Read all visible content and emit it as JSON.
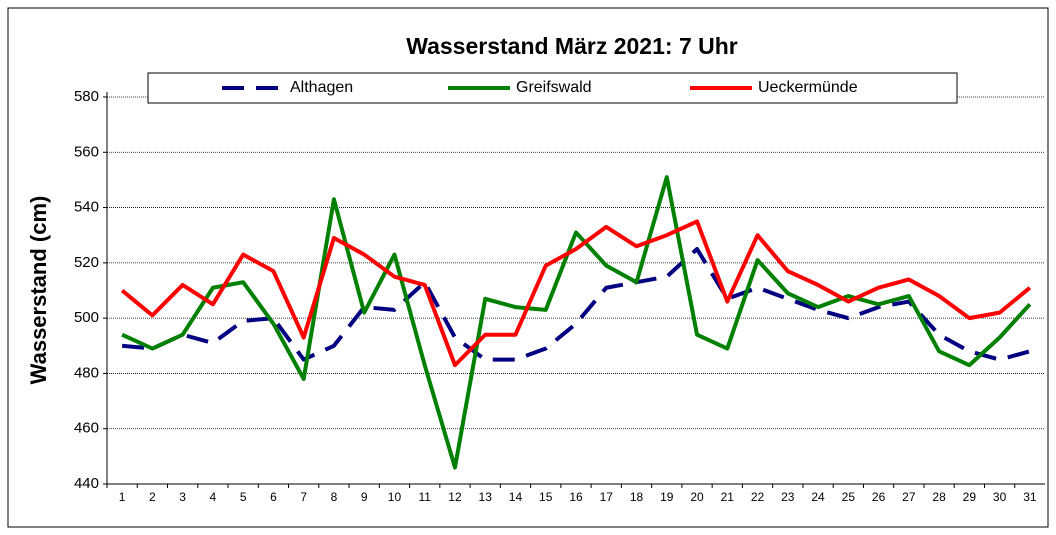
{
  "chart_data": {
    "type": "line",
    "title": "Wasserstand März 2021: 7 Uhr",
    "y_label": "Wasserstand (cm)",
    "categories": [
      "1",
      "2",
      "3",
      "4",
      "5",
      "6",
      "7",
      "8",
      "9",
      "10",
      "11",
      "12",
      "13",
      "14",
      "15",
      "16",
      "17",
      "18",
      "19",
      "20",
      "21",
      "22",
      "23",
      "24",
      "25",
      "26",
      "27",
      "28",
      "29",
      "30",
      "31"
    ],
    "series": [
      {
        "name": "Althagen",
        "color": "#000080",
        "dashed": true,
        "values": [
          490,
          489,
          494,
          491,
          499,
          500,
          485,
          490,
          504,
          503,
          513,
          493,
          485,
          485,
          489,
          498,
          511,
          513,
          515,
          525,
          507,
          511,
          507,
          503,
          500,
          504,
          506,
          494,
          488,
          485,
          488
        ]
      },
      {
        "name": "Greifswald",
        "color": "#008000",
        "dashed": false,
        "values": [
          494,
          489,
          494,
          511,
          513,
          498,
          478,
          543,
          502,
          523,
          483,
          446,
          507,
          504,
          503,
          531,
          519,
          513,
          551,
          494,
          489,
          521,
          509,
          504,
          508,
          505,
          508,
          488,
          483,
          493,
          505
        ]
      },
      {
        "name": "Ueckermünde",
        "color": "#ff0000",
        "dashed": false,
        "values": [
          510,
          501,
          512,
          505,
          523,
          517,
          493,
          529,
          523,
          515,
          512,
          483,
          494,
          494,
          519,
          525,
          533,
          526,
          530,
          535,
          506,
          530,
          517,
          512,
          506,
          511,
          514,
          508,
          500,
          502,
          511
        ]
      }
    ],
    "ylim": [
      440,
      580
    ],
    "yticks": [
      440,
      460,
      480,
      500,
      520,
      540,
      560,
      580
    ],
    "grid": true,
    "legend": "top"
  }
}
